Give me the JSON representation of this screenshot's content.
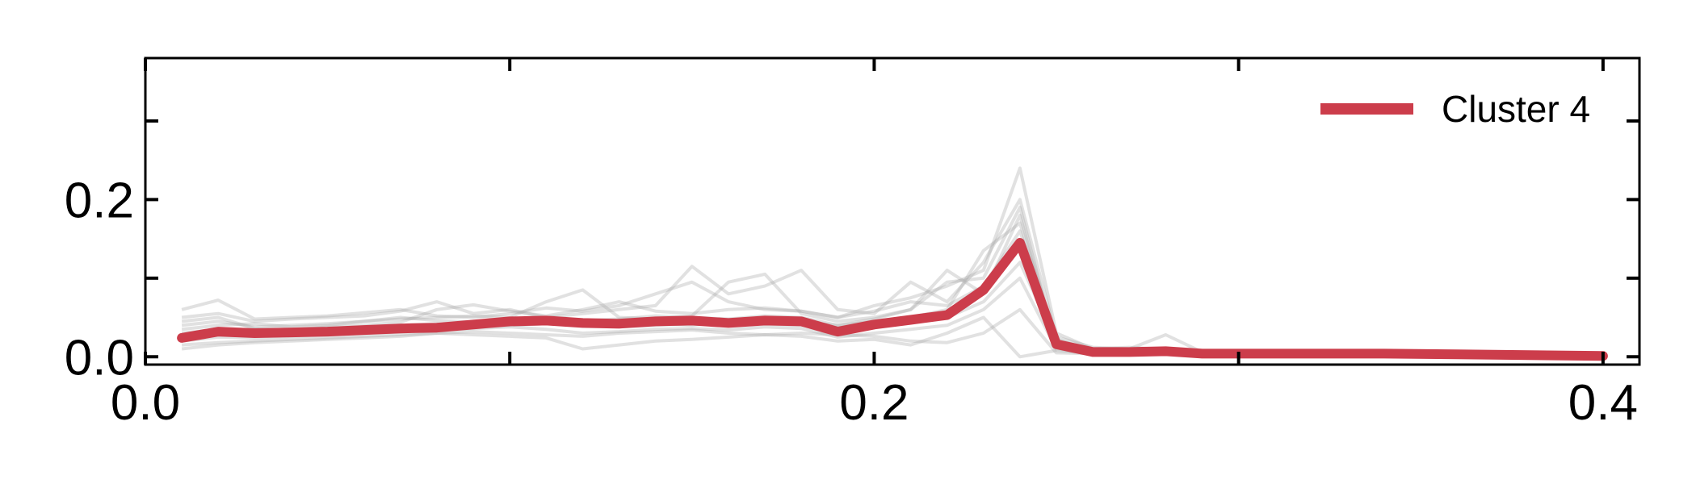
{
  "chart_data": {
    "type": "line",
    "title": "",
    "xlabel": "",
    "ylabel": "",
    "xlim": [
      0.0,
      0.41
    ],
    "ylim": [
      -0.01,
      0.38
    ],
    "x_ticks": [
      0.0,
      0.1,
      0.2,
      0.3,
      0.4
    ],
    "x_tick_labels": [
      "0.0",
      "",
      "0.2",
      "",
      "0.4"
    ],
    "y_ticks": [
      0.0,
      0.1,
      0.2,
      0.3
    ],
    "y_tick_labels": [
      "0.0",
      "",
      "0.2",
      ""
    ],
    "legend": {
      "position": "top-right",
      "entries": [
        "Cluster 4"
      ]
    },
    "colors": {
      "main": "#cc3d4b",
      "background": "#aaaaaa"
    },
    "x": [
      0.01,
      0.02,
      0.03,
      0.04,
      0.05,
      0.06,
      0.07,
      0.08,
      0.09,
      0.1,
      0.11,
      0.12,
      0.13,
      0.14,
      0.15,
      0.16,
      0.17,
      0.18,
      0.19,
      0.2,
      0.21,
      0.22,
      0.23,
      0.24,
      0.25,
      0.26,
      0.27,
      0.28,
      0.29,
      0.3,
      0.32,
      0.34,
      0.36,
      0.38,
      0.4
    ],
    "series": [
      {
        "name": "Cluster 4",
        "values": [
          0.024,
          0.032,
          0.03,
          0.031,
          0.032,
          0.034,
          0.036,
          0.037,
          0.041,
          0.045,
          0.046,
          0.043,
          0.042,
          0.045,
          0.046,
          0.043,
          0.046,
          0.045,
          0.032,
          0.041,
          0.047,
          0.053,
          0.085,
          0.145,
          0.016,
          0.006,
          0.006,
          0.007,
          0.004,
          0.004,
          0.004,
          0.004,
          0.003,
          0.002,
          0.001
        ]
      }
    ],
    "background_series": [
      [
        0.06,
        0.072,
        0.048,
        0.05,
        0.052,
        0.056,
        0.06,
        0.052,
        0.05,
        0.055,
        0.062,
        0.058,
        0.065,
        0.08,
        0.095,
        0.07,
        0.06,
        0.058,
        0.05,
        0.065,
        0.075,
        0.09,
        0.11,
        0.24,
        0.03,
        0.01,
        0.012,
        0.009,
        0.005,
        0.004,
        0.004,
        0.004,
        0.003,
        0.002,
        0.001
      ],
      [
        0.05,
        0.055,
        0.045,
        0.048,
        0.05,
        0.052,
        0.058,
        0.07,
        0.055,
        0.06,
        0.05,
        0.055,
        0.06,
        0.065,
        0.115,
        0.08,
        0.09,
        0.11,
        0.06,
        0.055,
        0.095,
        0.07,
        0.12,
        0.2,
        0.025,
        0.012,
        0.01,
        0.028,
        0.006,
        0.005,
        0.004,
        0.004,
        0.003,
        0.002,
        0.001
      ],
      [
        0.04,
        0.045,
        0.038,
        0.04,
        0.042,
        0.045,
        0.048,
        0.05,
        0.052,
        0.05,
        0.07,
        0.085,
        0.05,
        0.048,
        0.052,
        0.095,
        0.105,
        0.055,
        0.045,
        0.05,
        0.06,
        0.11,
        0.08,
        0.18,
        0.015,
        0.008,
        0.01,
        0.008,
        0.005,
        0.004,
        0.003,
        0.003,
        0.003,
        0.002,
        0.001
      ],
      [
        0.03,
        0.035,
        0.033,
        0.035,
        0.036,
        0.038,
        0.04,
        0.042,
        0.038,
        0.04,
        0.042,
        0.04,
        0.038,
        0.042,
        0.04,
        0.045,
        0.048,
        0.044,
        0.04,
        0.045,
        0.05,
        0.06,
        0.135,
        0.17,
        0.02,
        0.007,
        0.006,
        0.007,
        0.004,
        0.004,
        0.003,
        0.003,
        0.002,
        0.002,
        0.001
      ],
      [
        0.02,
        0.025,
        0.024,
        0.026,
        0.028,
        0.03,
        0.032,
        0.034,
        0.036,
        0.038,
        0.035,
        0.03,
        0.032,
        0.035,
        0.036,
        0.034,
        0.038,
        0.036,
        0.025,
        0.03,
        0.035,
        0.04,
        0.06,
        0.1,
        0.01,
        0.005,
        0.005,
        0.006,
        0.004,
        0.003,
        0.003,
        0.003,
        0.002,
        0.002,
        0.001
      ],
      [
        0.015,
        0.018,
        0.02,
        0.022,
        0.024,
        0.026,
        0.028,
        0.03,
        0.028,
        0.026,
        0.024,
        0.01,
        0.015,
        0.02,
        0.022,
        0.025,
        0.028,
        0.026,
        0.02,
        0.022,
        0.015,
        0.03,
        0.05,
        0.0,
        0.008,
        0.004,
        0.004,
        0.005,
        0.003,
        0.003,
        0.002,
        0.002,
        0.002,
        0.001,
        0.001
      ],
      [
        0.035,
        0.04,
        0.042,
        0.038,
        0.04,
        0.045,
        0.05,
        0.046,
        0.044,
        0.048,
        0.05,
        0.046,
        0.048,
        0.052,
        0.05,
        0.048,
        0.052,
        0.05,
        0.04,
        0.048,
        0.06,
        0.095,
        0.1,
        0.19,
        0.012,
        0.006,
        0.007,
        0.006,
        0.004,
        0.004,
        0.003,
        0.003,
        0.002,
        0.002,
        0.001
      ],
      [
        0.01,
        0.015,
        0.018,
        0.02,
        0.022,
        0.024,
        0.026,
        0.03,
        0.032,
        0.03,
        0.028,
        0.026,
        0.03,
        0.032,
        0.034,
        0.03,
        0.028,
        0.03,
        0.028,
        0.026,
        0.02,
        0.018,
        0.03,
        0.06,
        0.005,
        0.004,
        0.005,
        0.004,
        0.003,
        0.003,
        0.002,
        0.002,
        0.002,
        0.001,
        0.001
      ],
      [
        0.045,
        0.05,
        0.036,
        0.034,
        0.038,
        0.04,
        0.044,
        0.06,
        0.066,
        0.058,
        0.052,
        0.06,
        0.07,
        0.058,
        0.055,
        0.06,
        0.062,
        0.058,
        0.05,
        0.058,
        0.07,
        0.065,
        0.09,
        0.16,
        0.022,
        0.008,
        0.008,
        0.01,
        0.005,
        0.004,
        0.003,
        0.003,
        0.003,
        0.002,
        0.001
      ],
      [
        0.025,
        0.03,
        0.028,
        0.03,
        0.03,
        0.032,
        0.034,
        0.036,
        0.04,
        0.042,
        0.044,
        0.04,
        0.038,
        0.04,
        0.042,
        0.04,
        0.042,
        0.04,
        0.035,
        0.038,
        0.044,
        0.05,
        0.07,
        0.12,
        0.018,
        0.006,
        0.006,
        0.006,
        0.004,
        0.004,
        0.003,
        0.003,
        0.002,
        0.002,
        0.001
      ]
    ]
  }
}
